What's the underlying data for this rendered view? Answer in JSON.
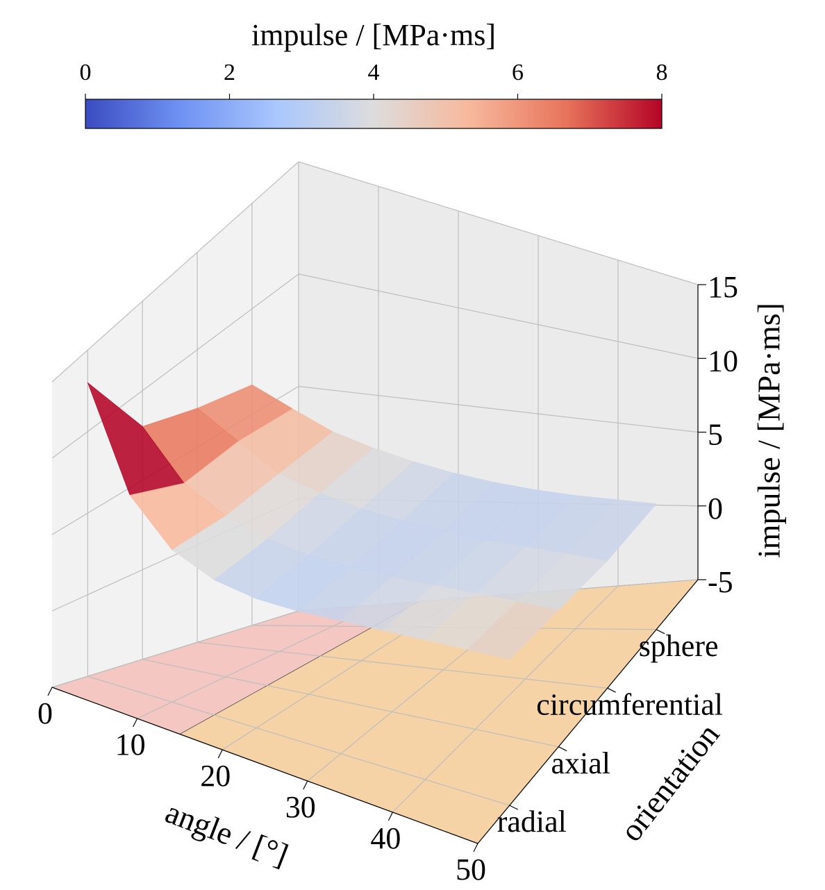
{
  "chart_data": {
    "type": "surface",
    "colorbar_label": "impulse / [MPa·ms]",
    "clim": [
      0,
      8
    ],
    "cticks": [
      0,
      2,
      4,
      6,
      8
    ],
    "colormap": [
      "#3b4cc0",
      "#6f92f3",
      "#aac7fd",
      "#dddcdc",
      "#f7b89c",
      "#e7745b",
      "#b40426"
    ],
    "xlabel": "angle / [°]",
    "ylabel": "orientation",
    "zlabel": "impulse /  [MPa·ms]",
    "x": [
      0,
      5,
      10,
      15,
      20,
      25,
      30,
      35,
      40,
      45,
      50
    ],
    "xlim": [
      0,
      50
    ],
    "xticks": [
      0,
      10,
      20,
      30,
      40,
      50
    ],
    "y_categories": [
      "radial",
      "axial",
      "circumferential",
      "sphere"
    ],
    "ylim": [
      -0.65,
      3.85
    ],
    "zlim": [
      -5,
      15
    ],
    "zticks": [
      -5,
      0,
      5,
      10,
      15
    ],
    "z": [
      [
        13,
        7,
        4.5,
        3.5,
        3.2,
        3.3,
        3.6,
        3.9,
        4.2,
        4.5,
        4.8
      ],
      [
        8,
        5.5,
        4.3,
        3.6,
        3.3,
        3.3,
        3.4,
        3.6,
        3.8,
        4.0,
        4.2
      ],
      [
        7,
        5.8,
        4.6,
        4.0,
        3.6,
        3.4,
        3.3,
        3.3,
        3.4,
        3.5,
        3.6
      ],
      [
        6.4,
        5.6,
        4.8,
        4.3,
        3.9,
        3.6,
        3.4,
        3.3,
        3.3,
        3.4,
        3.5
      ]
    ],
    "floor_regions": [
      {
        "xlim": [
          0,
          15
        ],
        "color": "#f4c7c3"
      },
      {
        "xlim": [
          15,
          50
        ],
        "color": "#f6d3a6"
      }
    ]
  }
}
